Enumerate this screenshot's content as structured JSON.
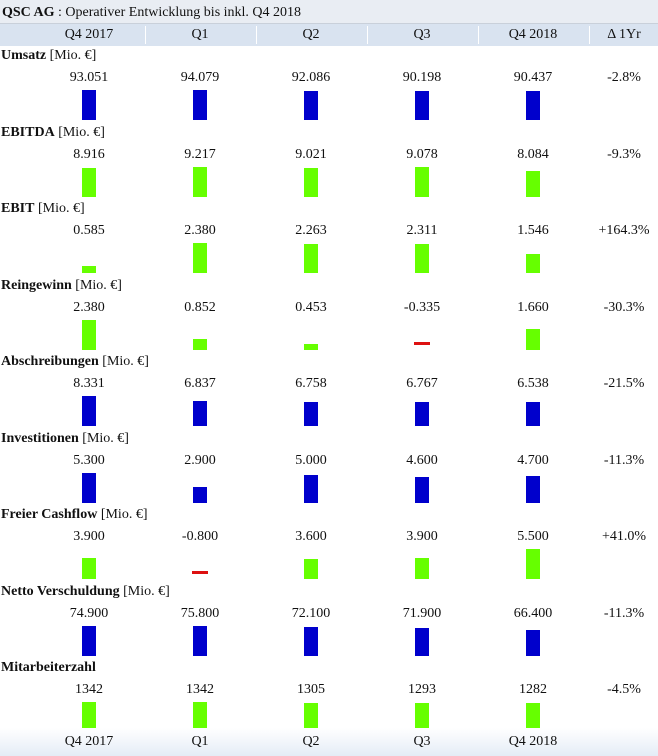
{
  "title": {
    "company": "QSC AG",
    "subtitle": ": Operativer Entwicklung bis inkl. Q4 2018"
  },
  "delta_header": "Δ 1Yr",
  "chart_data": {
    "type": "bar",
    "title": "QSC AG : Operativer Entwicklung bis inkl. Q4 2018",
    "categories": [
      "Q4 2017",
      "Q1",
      "Q2",
      "Q3",
      "Q4 2018"
    ],
    "colors": {
      "blue": "#0000cc",
      "green": "#66ff00",
      "red": "#dd1111"
    },
    "metrics": [
      {
        "name": "Umsatz",
        "unit": "[Mio. €]",
        "labels": [
          "93.051",
          "94.079",
          "92.086",
          "90.198",
          "90.437"
        ],
        "values": [
          93.051,
          94.079,
          92.086,
          90.198,
          90.437
        ],
        "delta": "-2.8%",
        "color": "blue"
      },
      {
        "name": "EBITDA",
        "unit": "[Mio. €]",
        "labels": [
          "8.916",
          "9.217",
          "9.021",
          "9.078",
          "8.084"
        ],
        "values": [
          8.916,
          9.217,
          9.021,
          9.078,
          8.084
        ],
        "delta": "-9.3%",
        "color": "green"
      },
      {
        "name": "EBIT",
        "unit": "[Mio. €]",
        "labels": [
          "0.585",
          "2.380",
          "2.263",
          "2.311",
          "1.546"
        ],
        "values": [
          0.585,
          2.38,
          2.263,
          2.311,
          1.546
        ],
        "delta": "+164.3%",
        "color": "green"
      },
      {
        "name": "Reingewinn",
        "unit": "[Mio. €]",
        "labels": [
          "2.380",
          "0.852",
          "0.453",
          "-0.335",
          "1.660"
        ],
        "values": [
          2.38,
          0.852,
          0.453,
          -0.335,
          1.66
        ],
        "delta": "-30.3%",
        "color": "green"
      },
      {
        "name": "Abschreibungen",
        "unit": "[Mio. €]",
        "labels": [
          "8.331",
          "6.837",
          "6.758",
          "6.767",
          "6.538"
        ],
        "values": [
          8.331,
          6.837,
          6.758,
          6.767,
          6.538
        ],
        "delta": "-21.5%",
        "color": "blue"
      },
      {
        "name": "Investitionen",
        "unit": "[Mio. €]",
        "labels": [
          "5.300",
          "2.900",
          "5.000",
          "4.600",
          "4.700"
        ],
        "values": [
          5.3,
          2.9,
          5.0,
          4.6,
          4.7
        ],
        "delta": "-11.3%",
        "color": "blue"
      },
      {
        "name": "Freier Cashflow",
        "unit": "[Mio. €]",
        "labels": [
          "3.900",
          "-0.800",
          "3.600",
          "3.900",
          "5.500"
        ],
        "values": [
          3.9,
          -0.8,
          3.6,
          3.9,
          5.5
        ],
        "delta": "+41.0%",
        "color": "green"
      },
      {
        "name": "Netto Verschuldung",
        "unit": "[Mio. €]",
        "labels": [
          "74.900",
          "75.800",
          "72.100",
          "71.900",
          "66.400"
        ],
        "values": [
          74.9,
          75.8,
          72.1,
          71.9,
          66.4
        ],
        "delta": "-11.3%",
        "color": "blue"
      },
      {
        "name": "Mitarbeiterzahl",
        "unit": "",
        "labels": [
          "1342",
          "1342",
          "1305",
          "1293",
          "1282"
        ],
        "values": [
          1342,
          1342,
          1305,
          1293,
          1282
        ],
        "delta": "-4.5%",
        "color": "green"
      }
    ]
  }
}
